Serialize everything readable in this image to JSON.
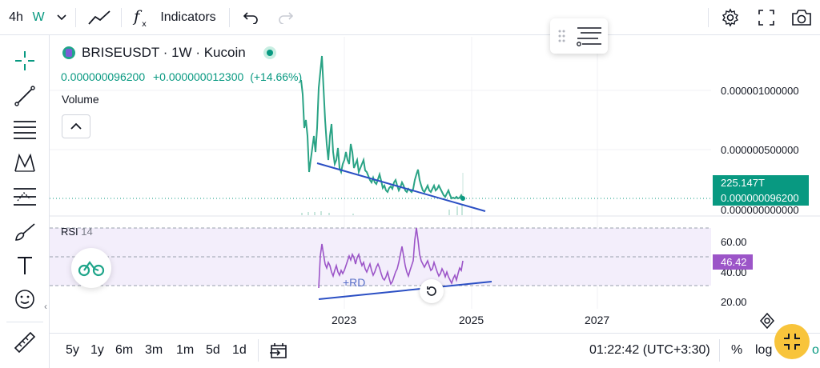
{
  "toolbar": {
    "interval": "4h",
    "interval_unit": "W",
    "indicators_label": "Indicators"
  },
  "symbol": {
    "title": "BRISEUSDT · 1W · Kucoin",
    "price": "0.000000096200",
    "change": "+0.000000012300",
    "change_pct": "(+14.66%)"
  },
  "volume_label": "Volume",
  "price_axis": {
    "labels": [
      "0.000001000000",
      "0.000000500000",
      "0.000000000000"
    ],
    "volume_tag": "225.147T",
    "price_tag": "0.000000096200"
  },
  "rsi": {
    "name": "RSI",
    "period": "14",
    "axis_labels": [
      "60.00",
      "40.00",
      "20.00"
    ],
    "value_tag": "46.42",
    "divergence_label": "+RD"
  },
  "time_axis": [
    "2023",
    "2025",
    "2027"
  ],
  "bottom": {
    "ranges": [
      "5y",
      "1y",
      "6m",
      "3m",
      "1m",
      "5d",
      "1d"
    ],
    "clock": "01:22:42 (UTC+3:30)",
    "percent": "%",
    "log": "log",
    "auto": "o"
  },
  "colors": {
    "up": "#089981",
    "rsi": "#9c55c8",
    "trendline": "#2b4fc4",
    "fullscreen": "#f8c43b"
  }
}
